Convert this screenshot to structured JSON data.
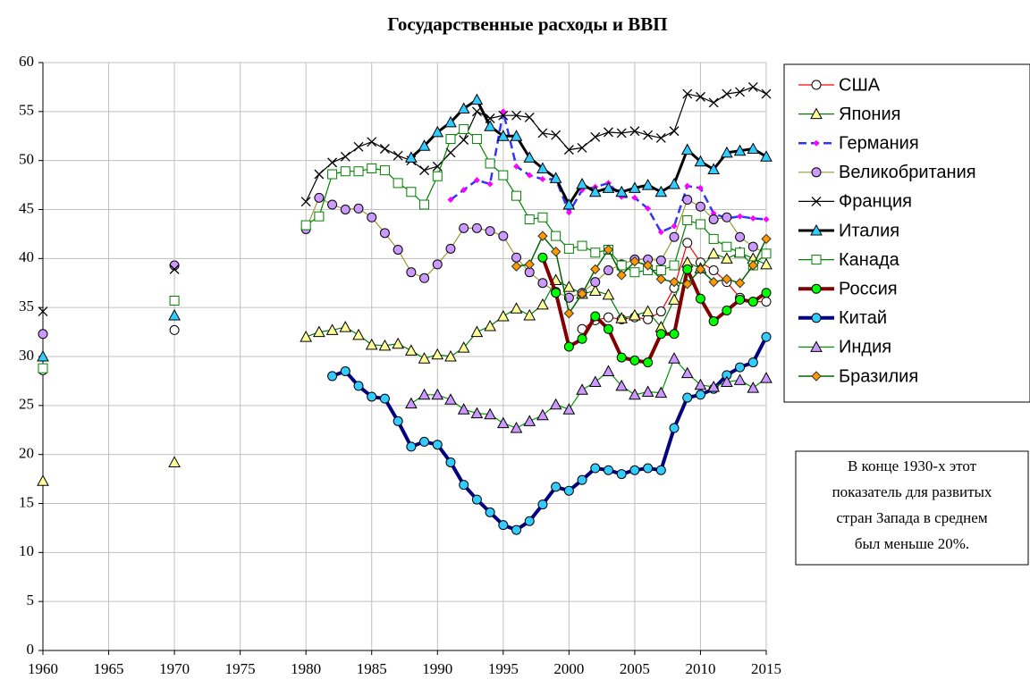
{
  "chart_data": {
    "type": "line",
    "title": "Государственные расходы и ВВП",
    "annotation": [
      "В конце 1930-х этот",
      "показатель для развитых",
      "стран Запада  в среднем",
      "был меньше 20%."
    ],
    "x": [
      1960,
      1961,
      1962,
      1963,
      1964,
      1965,
      1966,
      1967,
      1968,
      1969,
      1970,
      1971,
      1972,
      1973,
      1974,
      1975,
      1976,
      1977,
      1978,
      1979,
      1980,
      1981,
      1982,
      1983,
      1984,
      1985,
      1986,
      1987,
      1988,
      1989,
      1990,
      1991,
      1992,
      1993,
      1994,
      1995,
      1996,
      1997,
      1998,
      1999,
      2000,
      2001,
      2002,
      2003,
      2004,
      2005,
      2006,
      2007,
      2008,
      2009,
      2010,
      2011,
      2012,
      2013,
      2014,
      2015
    ],
    "xlim": [
      1960,
      2015
    ],
    "xticks": [
      1960,
      1965,
      1970,
      1975,
      1980,
      1985,
      1990,
      1995,
      2000,
      2005,
      2010,
      2015
    ],
    "ylim": [
      0,
      60
    ],
    "yticks": [
      0,
      5,
      10,
      15,
      20,
      25,
      30,
      35,
      40,
      45,
      50,
      55,
      60
    ],
    "grid": true,
    "legend": "right",
    "series": [
      {
        "name": "США",
        "color": "#ff0000",
        "marker": "circle",
        "marker_color": "#ffffff",
        "line_width": 1.2,
        "dash": false,
        "values": [
          28.6,
          null,
          null,
          null,
          null,
          null,
          null,
          null,
          null,
          null,
          32.7,
          null,
          null,
          null,
          null,
          null,
          null,
          null,
          null,
          null,
          null,
          null,
          null,
          null,
          null,
          null,
          null,
          null,
          null,
          null,
          null,
          null,
          null,
          null,
          null,
          null,
          null,
          null,
          null,
          null,
          null,
          32.8,
          33.7,
          34,
          33.8,
          34,
          33.8,
          34.6,
          37,
          41.6,
          39.6,
          38.8,
          37.6,
          36,
          35.6,
          35.6
        ]
      },
      {
        "name": "Япония",
        "color": "#008000",
        "marker": "triangle",
        "marker_color": "#ffff99",
        "line_width": 1.2,
        "dash": false,
        "values": [
          17.3,
          null,
          null,
          null,
          null,
          null,
          null,
          null,
          null,
          null,
          19.2,
          null,
          null,
          null,
          null,
          null,
          null,
          null,
          null,
          null,
          32,
          32.5,
          32.7,
          33,
          32.2,
          31.2,
          31.1,
          31.3,
          30.6,
          29.8,
          30.2,
          30,
          30.9,
          32.5,
          33.1,
          34.1,
          34.9,
          34.2,
          35.3,
          37.8,
          37.1,
          36.4,
          36.7,
          36.3,
          33.9,
          34.2,
          34.6,
          33,
          35.8,
          39.6,
          39,
          40.5,
          40,
          40.6,
          40,
          39.4
        ]
      },
      {
        "name": "Германия",
        "color": "#3333ff",
        "marker": "diamond",
        "marker_color": "#ff00ff",
        "line_width": 2.5,
        "dash": true,
        "values": [
          null,
          null,
          null,
          null,
          null,
          null,
          null,
          null,
          null,
          null,
          null,
          null,
          null,
          null,
          null,
          null,
          null,
          null,
          null,
          null,
          null,
          null,
          null,
          null,
          null,
          null,
          null,
          null,
          null,
          null,
          null,
          46,
          47,
          48,
          47.6,
          55,
          49.4,
          48.5,
          48.1,
          48.1,
          44.7,
          47,
          47.3,
          47.7,
          46.3,
          46.2,
          45.1,
          42.7,
          43.3,
          47.4,
          47.2,
          44.6,
          44.1,
          44.3,
          44.1,
          44
        ]
      },
      {
        "name": "Великобритания",
        "color": "#999933",
        "marker": "circle",
        "marker_color": "#cc99ff",
        "line_width": 1.2,
        "dash": false,
        "values": [
          32.3,
          null,
          null,
          null,
          null,
          null,
          null,
          null,
          null,
          null,
          39.3,
          null,
          null,
          null,
          null,
          null,
          null,
          null,
          null,
          null,
          43,
          46.2,
          45.5,
          45,
          45.1,
          44.2,
          42.6,
          40.9,
          38.6,
          38,
          39.4,
          41,
          43.1,
          43.1,
          42.8,
          42.3,
          40.1,
          38.6,
          37.5,
          36.6,
          36,
          36.5,
          37.6,
          38.8,
          39.4,
          39.9,
          39.9,
          39.8,
          42.2,
          46,
          45.3,
          44,
          44.2,
          42.2,
          41.2,
          40.5
        ]
      },
      {
        "name": "Франция",
        "color": "#000000",
        "marker": "x",
        "marker_color": "#000000",
        "line_width": 1.2,
        "dash": false,
        "values": [
          34.6,
          null,
          null,
          null,
          null,
          null,
          null,
          null,
          null,
          null,
          38.9,
          null,
          null,
          null,
          null,
          null,
          null,
          null,
          null,
          null,
          45.8,
          48.6,
          49.8,
          50.4,
          51.4,
          51.9,
          51.2,
          50.5,
          50,
          49,
          49.4,
          50.8,
          52.1,
          55,
          54.3,
          54.6,
          54.6,
          54.4,
          52.8,
          52.6,
          51.1,
          51.3,
          52.4,
          52.9,
          52.8,
          53,
          52.6,
          52.3,
          53,
          56.8,
          56.5,
          55.9,
          56.8,
          57,
          57.5,
          56.8
        ]
      },
      {
        "name": "Италия",
        "color": "#000000",
        "marker": "triangle",
        "marker_color": "#33ccff",
        "line_width": 3,
        "dash": false,
        "values": [
          30,
          null,
          null,
          null,
          null,
          null,
          null,
          null,
          null,
          null,
          34.2,
          null,
          null,
          null,
          null,
          null,
          null,
          null,
          null,
          null,
          null,
          null,
          null,
          null,
          null,
          null,
          null,
          null,
          50.3,
          51.5,
          52.9,
          53.9,
          55.3,
          56.2,
          53.5,
          52.5,
          52.5,
          50.3,
          49.2,
          48.2,
          45.5,
          47.6,
          46.8,
          47.2,
          46.8,
          47.2,
          47.5,
          46.8,
          47.6,
          51.1,
          49.9,
          49.1,
          50.8,
          51,
          51.2,
          50.4
        ]
      },
      {
        "name": "Канада",
        "color": "#008000",
        "marker": "square",
        "marker_color": "#ffffff",
        "line_width": 1.2,
        "dash": false,
        "values": [
          28.8,
          null,
          null,
          null,
          null,
          null,
          null,
          null,
          null,
          null,
          35.7,
          null,
          null,
          null,
          null,
          null,
          null,
          null,
          null,
          null,
          43.4,
          44.3,
          48.6,
          48.9,
          48.9,
          49.2,
          49,
          47.7,
          46.8,
          45.5,
          48.4,
          52.2,
          53.2,
          52.2,
          49.7,
          48.5,
          46.4,
          44,
          44.2,
          42.3,
          41,
          41.3,
          40.6,
          40.9,
          39.3,
          38.6,
          38.8,
          38.8,
          39.3,
          43.9,
          43.5,
          42,
          41.2,
          40.6,
          39.3,
          40.5
        ]
      },
      {
        "name": "Россия",
        "color": "#800000",
        "marker": "circle",
        "marker_color": "#00ff00",
        "line_width": 4,
        "dash": false,
        "values": [
          null,
          null,
          null,
          null,
          null,
          null,
          null,
          null,
          null,
          null,
          null,
          null,
          null,
          null,
          null,
          null,
          null,
          null,
          null,
          null,
          null,
          null,
          null,
          null,
          null,
          null,
          null,
          null,
          null,
          null,
          null,
          null,
          null,
          null,
          null,
          null,
          null,
          null,
          40.1,
          36.5,
          31,
          31.8,
          34.1,
          32.8,
          29.9,
          29.6,
          29.4,
          32.3,
          32.3,
          38.9,
          35.9,
          33.6,
          34.7,
          35.8,
          35.6,
          36.5
        ]
      },
      {
        "name": "Китай",
        "color": "#000080",
        "marker": "circle",
        "marker_color": "#33ccff",
        "line_width": 4,
        "dash": false,
        "values": [
          null,
          null,
          null,
          null,
          null,
          null,
          null,
          null,
          null,
          null,
          null,
          null,
          null,
          null,
          null,
          null,
          null,
          null,
          null,
          null,
          null,
          null,
          28,
          28.5,
          27,
          25.9,
          25.7,
          23.4,
          20.8,
          21.3,
          21,
          19.2,
          16.9,
          15.4,
          14.1,
          12.8,
          12.3,
          13.2,
          14.9,
          16.7,
          16.3,
          17.4,
          18.6,
          18.4,
          18,
          18.4,
          18.6,
          18.4,
          22.7,
          25.8,
          26.1,
          26.7,
          28.1,
          28.9,
          29.4,
          32
        ]
      },
      {
        "name": "Индия",
        "color": "#009900",
        "marker": "triangle",
        "marker_color": "#cc99ff",
        "line_width": 1.2,
        "dash": false,
        "values": [
          null,
          null,
          null,
          null,
          null,
          null,
          null,
          null,
          null,
          null,
          null,
          null,
          null,
          null,
          null,
          null,
          null,
          null,
          null,
          null,
          null,
          null,
          null,
          null,
          null,
          null,
          null,
          null,
          25.2,
          26.1,
          26.1,
          25.6,
          24.6,
          24.2,
          24.1,
          23.2,
          22.7,
          23.4,
          24,
          25.1,
          24.6,
          26.6,
          27.4,
          28.5,
          27,
          26.1,
          26.4,
          26.3,
          29.8,
          28.3,
          27.1,
          26.9,
          27.4,
          27.6,
          26.8,
          27.8
        ]
      },
      {
        "name": "Бразилия",
        "color": "#006600",
        "marker": "diamond",
        "marker_color": "#ff9900",
        "line_width": 1.5,
        "dash": false,
        "values": [
          null,
          null,
          null,
          null,
          null,
          null,
          null,
          null,
          null,
          null,
          null,
          null,
          null,
          null,
          null,
          null,
          null,
          null,
          null,
          null,
          null,
          null,
          null,
          null,
          null,
          null,
          null,
          null,
          null,
          null,
          null,
          null,
          null,
          null,
          null,
          null,
          39.2,
          39.4,
          42.3,
          40.7,
          34.4,
          36.4,
          38.9,
          40.9,
          38.3,
          39.7,
          39.3,
          37.9,
          37.6,
          37.4,
          38.9,
          37.6,
          37.9,
          37.5,
          39.3,
          42
        ]
      }
    ]
  }
}
